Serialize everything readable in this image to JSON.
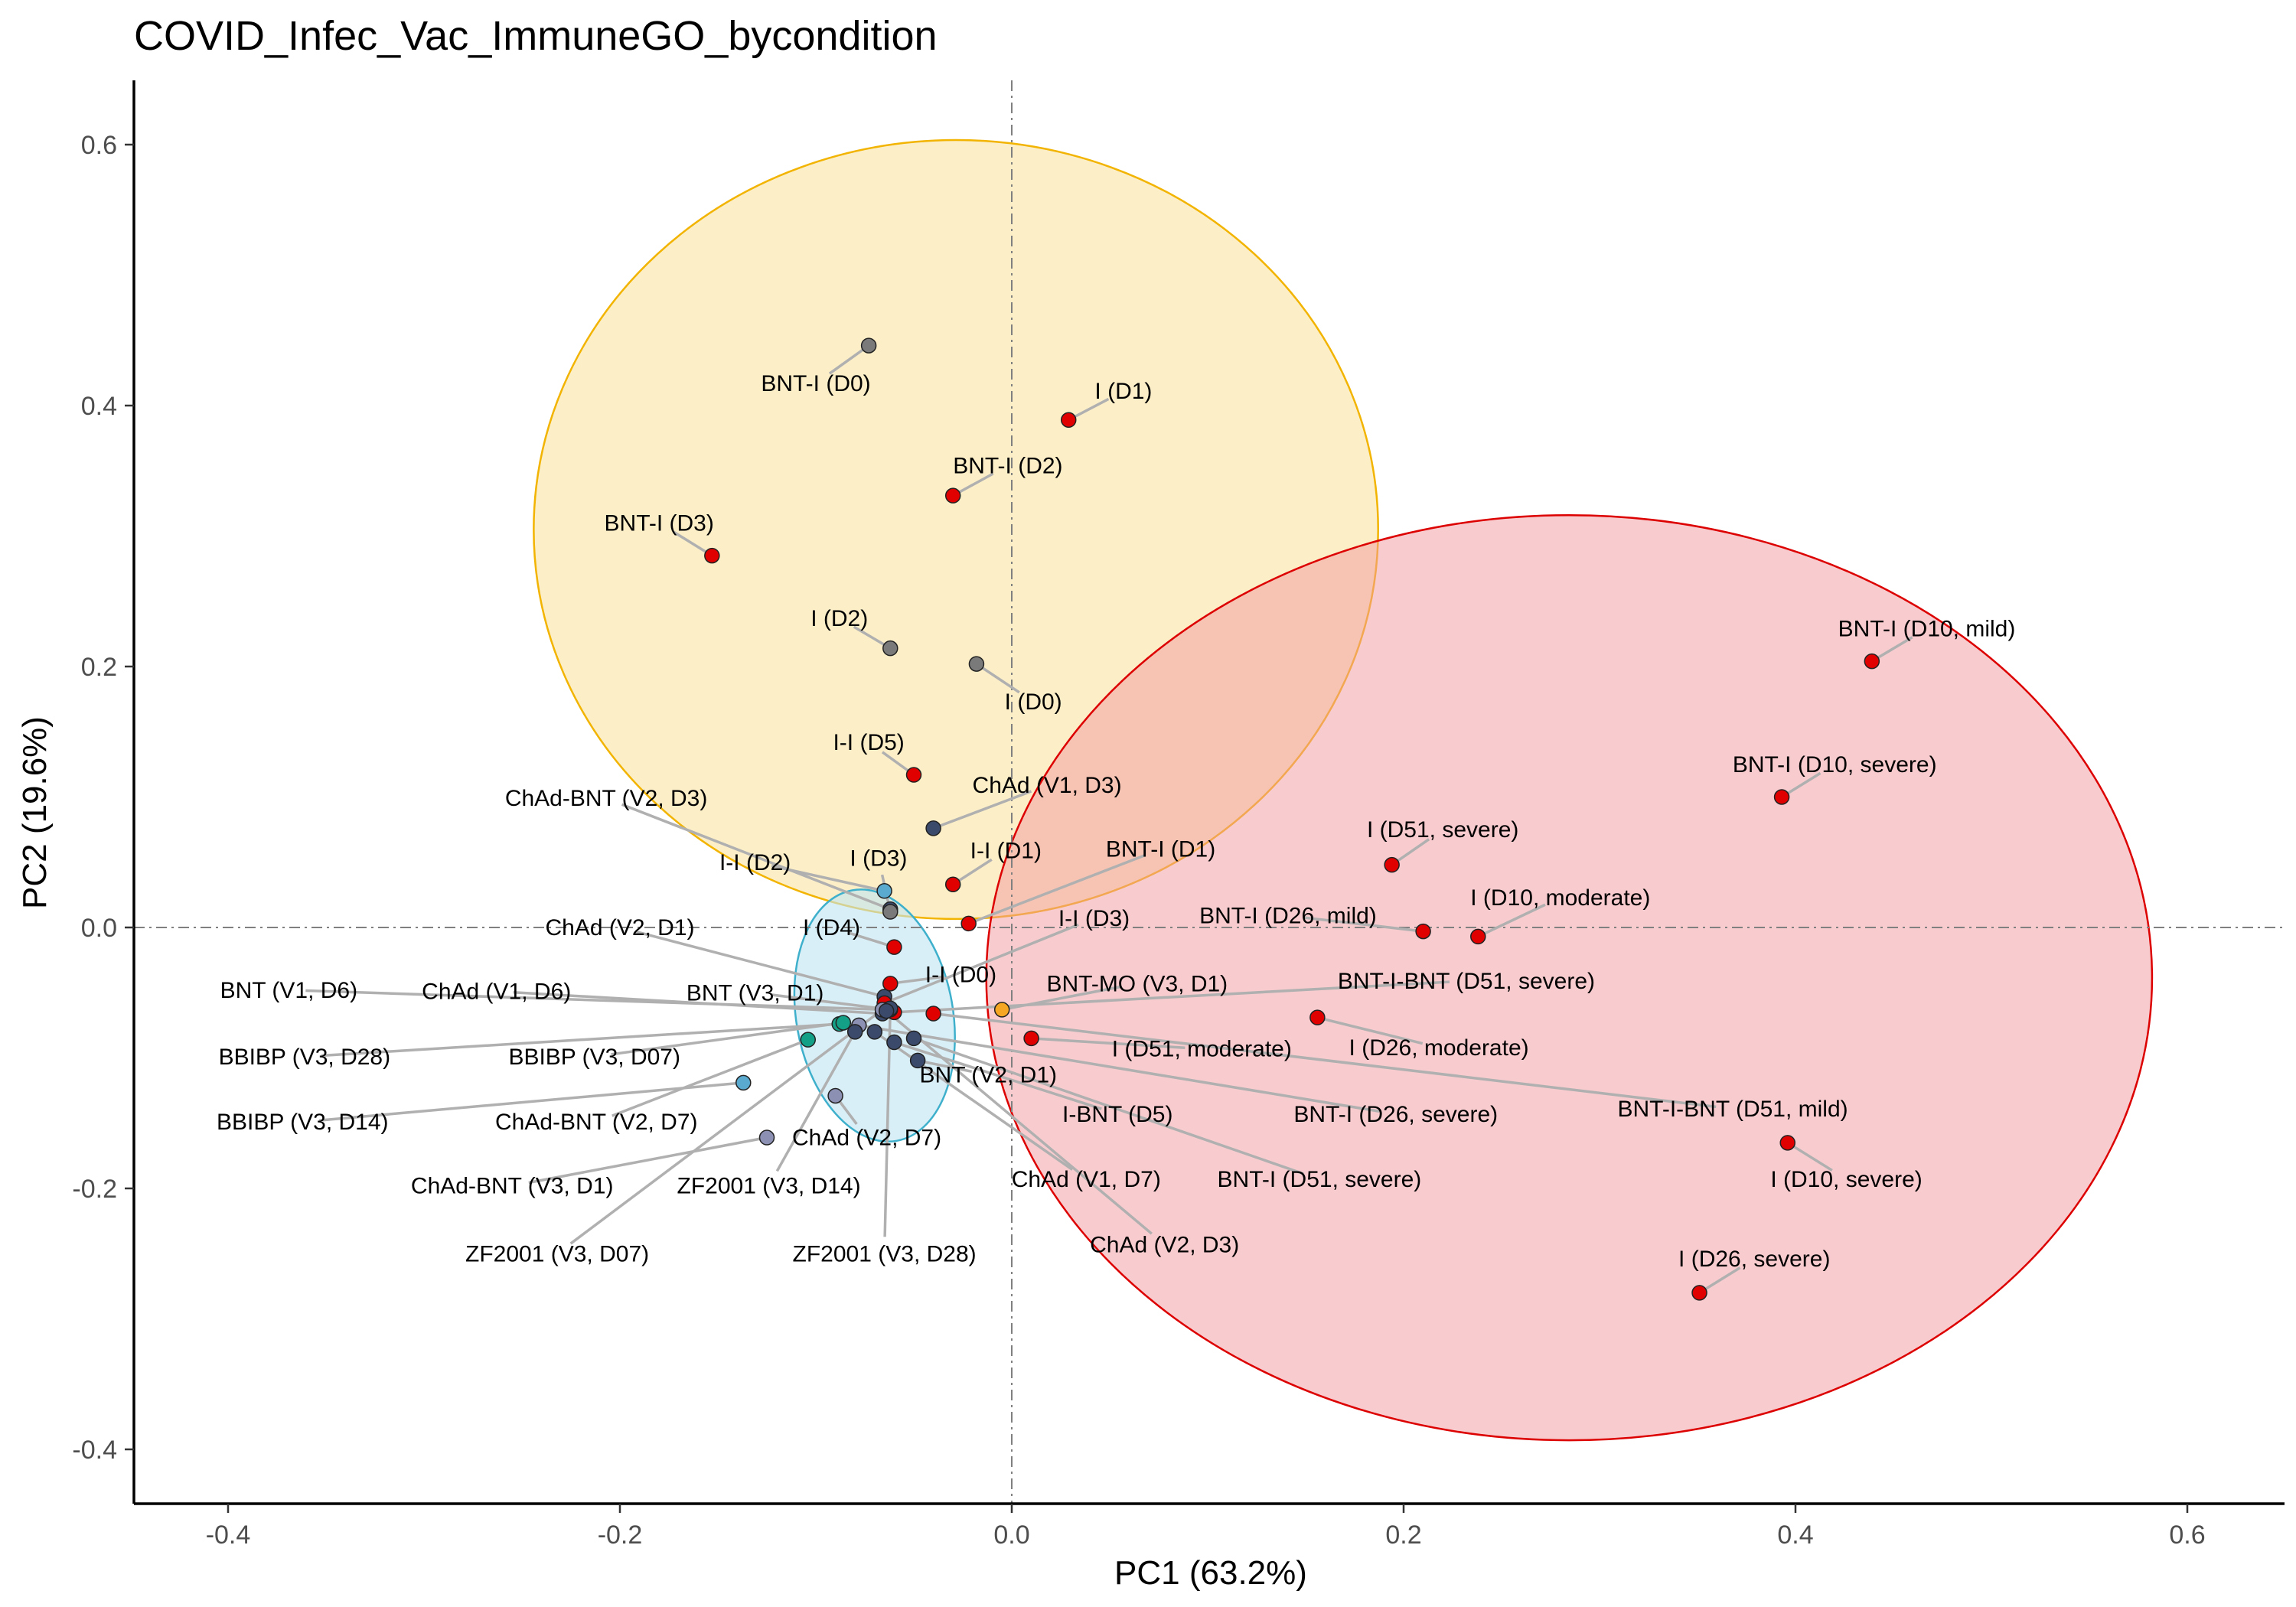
{
  "chart_data": {
    "type": "scatter",
    "title": "COVID_Infec_Vac_ImmuneGO_bycondition",
    "xlabel": "PC1 (63.2%)",
    "ylabel": "PC2 (19.6%)",
    "xlim": [
      -0.45,
      0.65
    ],
    "ylim": [
      -0.44,
      0.65
    ],
    "x_ticks": [
      -0.4,
      -0.2,
      0.0,
      0.2,
      0.4,
      0.6
    ],
    "x_tick_labels": [
      "-0.4",
      "-0.2",
      "0.0",
      "0.2",
      "0.4",
      "0.6"
    ],
    "y_ticks": [
      -0.4,
      -0.2,
      0.0,
      0.2,
      0.4,
      0.6
    ],
    "y_tick_labels": [
      "-0.4",
      "-0.2",
      "0.0",
      "0.2",
      "0.4",
      "0.6"
    ],
    "grid": false,
    "reference_lines": {
      "x": 0,
      "y": 0,
      "style": "dash-dot",
      "color": "#808080"
    },
    "colors": {
      "red": "#e00000",
      "grey": "#7a7a7a",
      "navy": "#3b4a6b",
      "skyblue": "#5aa9cf",
      "teal": "#14a087",
      "orange": "#f5a623",
      "lavender": "#8c90b3",
      "ellipse_yellow_fill": "#fbe8b0",
      "ellipse_yellow_stroke": "#f2b400",
      "ellipse_red_fill": "#f29aa0",
      "ellipse_red_stroke": "#dd0000",
      "ellipse_blue_fill": "#bfe4f2",
      "ellipse_blue_stroke": "#3fb0cc",
      "leader_line": "#b0b0b0"
    },
    "ellipses": [
      {
        "cx": -0.0285,
        "cy": 0.305,
        "rx": 0.2155,
        "ry": 0.2985,
        "fill": "ellipse_yellow_fill",
        "stroke": "ellipse_yellow_stroke",
        "opacity": 0.7
      },
      {
        "cx": 0.2845,
        "cy": -0.0385,
        "rx": 0.2975,
        "ry": 0.3545,
        "fill": "ellipse_red_fill",
        "stroke": "ellipse_red_stroke",
        "opacity": 0.5
      },
      {
        "cx": -0.07,
        "cy": -0.0675,
        "rx": 0.04,
        "ry": 0.0975,
        "rotate": -10,
        "fill": "ellipse_blue_fill",
        "stroke": "ellipse_blue_stroke",
        "opacity": 0.6
      }
    ],
    "points": [
      {
        "label": "BNT-I (D0)",
        "x": -0.073,
        "y": 0.446,
        "color": "grey",
        "lx": -0.1,
        "ly": 0.417
      },
      {
        "label": "I (D1)",
        "x": 0.029,
        "y": 0.389,
        "color": "red",
        "lx": 0.057,
        "ly": 0.411
      },
      {
        "label": "BNT-I (D2)",
        "x": -0.03,
        "y": 0.331,
        "color": "red",
        "lx": -0.002,
        "ly": 0.354
      },
      {
        "label": "BNT-I (D3)",
        "x": -0.153,
        "y": 0.285,
        "color": "red",
        "lx": -0.18,
        "ly": 0.31
      },
      {
        "label": "I (D2)",
        "x": -0.062,
        "y": 0.214,
        "color": "grey",
        "lx": -0.088,
        "ly": 0.237
      },
      {
        "label": "I (D0)",
        "x": -0.018,
        "y": 0.202,
        "color": "grey",
        "lx": 0.011,
        "ly": 0.173
      },
      {
        "label": "I-I (D5)",
        "x": -0.05,
        "y": 0.117,
        "color": "red",
        "lx": -0.073,
        "ly": 0.142
      },
      {
        "label": "ChAd (V1, D3)",
        "x": -0.04,
        "y": 0.076,
        "color": "navy",
        "lx": 0.018,
        "ly": 0.109
      },
      {
        "label": "ChAd-BNT (V2, D3)",
        "x": -0.062,
        "y": 0.014,
        "color": "navy",
        "lx": -0.207,
        "ly": 0.099
      },
      {
        "label": "I-I (D2)",
        "x": -0.065,
        "y": 0.028,
        "color": "skyblue",
        "lx": -0.131,
        "ly": 0.05
      },
      {
        "label": "I (D3)",
        "x": -0.062,
        "y": 0.012,
        "color": "grey",
        "lx": -0.068,
        "ly": 0.053
      },
      {
        "label": "I-I (D1)",
        "x": -0.03,
        "y": 0.033,
        "color": "red",
        "lx": -0.003,
        "ly": 0.059
      },
      {
        "label": "BNT-I (D1)",
        "x": -0.022,
        "y": 0.003,
        "color": "red",
        "lx": 0.076,
        "ly": 0.06
      },
      {
        "label": "ChAd (V2, D1)",
        "x": -0.065,
        "y": -0.053,
        "color": "navy",
        "lx": -0.2,
        "ly": 0.0
      },
      {
        "label": "I-I (D3)",
        "x": -0.065,
        "y": -0.058,
        "color": "red",
        "lx": 0.042,
        "ly": 0.007
      },
      {
        "label": "I (D4)",
        "x": -0.06,
        "y": -0.015,
        "color": "red",
        "lx": -0.092,
        "ly": 0.0
      },
      {
        "label": "BNT-I (D26, mild)",
        "x": 0.21,
        "y": -0.003,
        "color": "red",
        "lx": 0.141,
        "ly": 0.009
      },
      {
        "label": "I (D10, moderate)",
        "x": 0.238,
        "y": -0.007,
        "color": "red",
        "lx": 0.28,
        "ly": 0.023
      },
      {
        "label": "I (D51, severe)",
        "x": 0.194,
        "y": 0.048,
        "color": "red",
        "lx": 0.22,
        "ly": 0.075
      },
      {
        "label": "BNT-I (D10, mild)",
        "x": 0.439,
        "y": 0.204,
        "color": "red",
        "lx": 0.467,
        "ly": 0.229
      },
      {
        "label": "BNT-I (D10, severe)",
        "x": 0.393,
        "y": 0.1,
        "color": "red",
        "lx": 0.42,
        "ly": 0.125
      },
      {
        "label": "I-I (D0)",
        "x": -0.062,
        "y": -0.043,
        "color": "red",
        "lx": -0.026,
        "ly": -0.036
      },
      {
        "label": "BNT-MO (V3, D1)",
        "x": -0.005,
        "y": -0.063,
        "color": "orange",
        "lx": 0.064,
        "ly": -0.043
      },
      {
        "label": "BNT-I-BNT (D51, severe)",
        "x": -0.06,
        "y": -0.065,
        "color": "red",
        "lx": 0.232,
        "ly": -0.041
      },
      {
        "label": "BNT (V1, D6)",
        "x": -0.064,
        "y": -0.063,
        "color": "teal",
        "lx": -0.369,
        "ly": -0.048
      },
      {
        "label": "ChAd (V1, D6)",
        "x": -0.066,
        "y": -0.066,
        "color": "navy",
        "lx": -0.263,
        "ly": -0.049
      },
      {
        "label": "BNT (V3, D1)",
        "x": -0.062,
        "y": -0.063,
        "color": "orange",
        "lx": -0.131,
        "ly": -0.05
      },
      {
        "label": "I (D26, moderate)",
        "x": 0.156,
        "y": -0.069,
        "color": "red",
        "lx": 0.218,
        "ly": -0.092
      },
      {
        "label": "I (D51, moderate)",
        "x": 0.01,
        "y": -0.085,
        "color": "red",
        "lx": 0.097,
        "ly": -0.093
      },
      {
        "label": "BBIBP (V3, D28)",
        "x": -0.088,
        "y": -0.074,
        "color": "teal",
        "lx": -0.361,
        "ly": -0.099
      },
      {
        "label": "BBIBP (V3, D07)",
        "x": -0.086,
        "y": -0.073,
        "color": "teal",
        "lx": -0.213,
        "ly": -0.099
      },
      {
        "label": "BNT (V2, D1)",
        "x": -0.048,
        "y": -0.102,
        "color": "navy",
        "lx": -0.012,
        "ly": -0.113
      },
      {
        "label": "BNT-I-BNT (D51, mild)",
        "x": -0.04,
        "y": -0.066,
        "color": "red",
        "lx": 0.368,
        "ly": -0.139
      },
      {
        "label": "I (D10, severe)",
        "x": 0.396,
        "y": -0.165,
        "color": "red",
        "lx": 0.426,
        "ly": -0.193
      },
      {
        "label": "BBIBP (V3, D14)",
        "x": -0.137,
        "y": -0.119,
        "color": "skyblue",
        "lx": -0.362,
        "ly": -0.149
      },
      {
        "label": "ChAd-BNT (V2, D7)",
        "x": -0.104,
        "y": -0.086,
        "color": "teal",
        "lx": -0.212,
        "ly": -0.149
      },
      {
        "label": "I-BNT (D5)",
        "x": -0.06,
        "y": -0.088,
        "color": "navy",
        "lx": 0.054,
        "ly": -0.143
      },
      {
        "label": "BNT-I (D26, severe)",
        "x": -0.078,
        "y": -0.075,
        "color": "lavender",
        "lx": 0.196,
        "ly": -0.143
      },
      {
        "label": "ChAd (V2, D7)",
        "x": -0.09,
        "y": -0.129,
        "color": "lavender",
        "lx": -0.074,
        "ly": -0.161
      },
      {
        "label": "ChAd-BNT (V3, D1)",
        "x": -0.125,
        "y": -0.161,
        "color": "lavender",
        "lx": -0.255,
        "ly": -0.198
      },
      {
        "label": "ZF2001 (V3, D14)",
        "x": -0.08,
        "y": -0.08,
        "color": "navy",
        "lx": -0.124,
        "ly": -0.198
      },
      {
        "label": "ChAd (V1, D7)",
        "x": -0.07,
        "y": -0.08,
        "color": "navy",
        "lx": 0.038,
        "ly": -0.193
      },
      {
        "label": "BNT-I (D51, severe)",
        "x": -0.05,
        "y": -0.085,
        "color": "navy",
        "lx": 0.157,
        "ly": -0.193
      },
      {
        "label": "ZF2001 (V3, D07)",
        "x": -0.066,
        "y": -0.063,
        "color": "lavender",
        "lx": -0.232,
        "ly": -0.25
      },
      {
        "label": "ZF2001 (V3, D28)",
        "x": -0.062,
        "y": -0.062,
        "color": "navy",
        "lx": -0.065,
        "ly": -0.25
      },
      {
        "label": "ChAd (V2, D3)",
        "x": -0.064,
        "y": -0.064,
        "color": "navy",
        "lx": 0.078,
        "ly": -0.243
      },
      {
        "label": "I (D26, severe)",
        "x": 0.351,
        "y": -0.28,
        "color": "red",
        "lx": 0.379,
        "ly": -0.254
      }
    ]
  }
}
